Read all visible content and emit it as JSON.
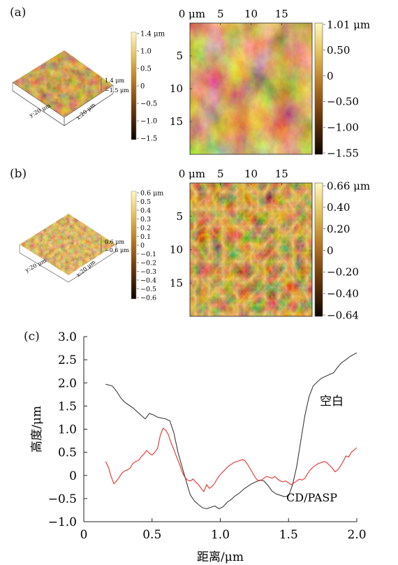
{
  "panels": {
    "a": {
      "label": "(a)",
      "surface3d": {
        "y_axis_label": "y:20 μm",
        "x_axis_label": "x:20 μm",
        "z_top_label": "1.4 μm",
        "z_bottom_label": "−1.5 μm"
      },
      "colorbar_left": {
        "ticks": [
          "1.4 μm",
          "1.0",
          "0.5",
          "0",
          "−0.5",
          "−1.0",
          "−1.5"
        ]
      },
      "map": {
        "x_ticks": [
          "0 μm",
          "5",
          "10",
          "15"
        ],
        "y_ticks": [
          "5",
          "10",
          "15"
        ]
      },
      "colorbar_right": {
        "ticks": [
          "1.01 μm",
          "0.50",
          "0",
          "−0.50",
          "−1.00",
          "−1.55"
        ]
      }
    },
    "b": {
      "label": "(b)",
      "surface3d": {
        "y_axis_label": "y:20 μm",
        "x_axis_label": "x:20 μm",
        "z_top_label": "0.6 μm",
        "z_bottom_label": "−0.6 μm"
      },
      "colorbar_left": {
        "ticks": [
          "0.6 μm",
          "0.5",
          "0.4",
          "0.3",
          "0.2",
          "0.1",
          "0",
          "−0.1",
          "−0.2",
          "−0.3",
          "−0.4",
          "−0.5",
          "−0.6"
        ]
      },
      "map": {
        "x_ticks": [
          "0 μm",
          "5",
          "10",
          "15"
        ],
        "y_ticks": [
          "5",
          "10",
          "15"
        ]
      },
      "colorbar_right": {
        "ticks": [
          "0.66 μm",
          "0.40",
          "0.20",
          "0",
          "−0.20",
          "−0.40",
          "−0.64"
        ]
      }
    },
    "c": {
      "label": "(c)"
    }
  },
  "chart_data": {
    "type": "line",
    "xlabel": "距离/μm",
    "ylabel": "高度/μm",
    "xlim": [
      0,
      2.0
    ],
    "ylim": [
      -1.0,
      3.0
    ],
    "x_ticks": [
      0,
      0.5,
      1.0,
      1.5,
      2.0
    ],
    "x_tick_labels": [
      "0",
      "0.5",
      "1.0",
      "1.5",
      "2.0"
    ],
    "y_ticks": [
      -1.0,
      -0.5,
      0,
      0.5,
      1.0,
      1.5,
      2.0,
      2.5,
      3.0
    ],
    "y_tick_labels": [
      "−1.0",
      "−0.5",
      "0",
      "0.5",
      "1.0",
      "1.5",
      "2.0",
      "2.5",
      "3.0"
    ],
    "grid": false,
    "series": [
      {
        "name": "空白",
        "color": "#3a3a3a",
        "x": [
          0.16,
          0.19,
          0.21,
          0.24,
          0.27,
          0.3,
          0.33,
          0.36,
          0.39,
          0.42,
          0.45,
          0.48,
          0.51,
          0.54,
          0.57,
          0.6,
          0.63,
          0.66,
          0.69,
          0.72,
          0.75,
          0.78,
          0.81,
          0.84,
          0.87,
          0.9,
          0.93,
          0.96,
          0.99,
          1.02,
          1.05,
          1.08,
          1.11,
          1.14,
          1.17,
          1.2,
          1.23,
          1.26,
          1.29,
          1.32,
          1.35,
          1.38,
          1.41,
          1.44,
          1.47,
          1.5,
          1.53,
          1.56,
          1.59,
          1.62,
          1.65,
          1.68,
          1.71,
          1.74,
          1.77,
          1.8,
          1.83,
          1.86,
          1.89,
          1.92,
          1.95,
          1.98,
          2.0
        ],
        "y": [
          1.97,
          1.95,
          1.93,
          1.82,
          1.68,
          1.58,
          1.52,
          1.46,
          1.38,
          1.3,
          1.22,
          1.34,
          1.31,
          1.26,
          1.24,
          1.22,
          1.18,
          0.92,
          0.5,
          0.18,
          -0.12,
          -0.42,
          -0.55,
          -0.63,
          -0.7,
          -0.72,
          -0.69,
          -0.66,
          -0.72,
          -0.68,
          -0.58,
          -0.52,
          -0.44,
          -0.38,
          -0.3,
          -0.24,
          -0.18,
          -0.14,
          -0.1,
          -0.12,
          -0.22,
          -0.34,
          -0.4,
          -0.43,
          -0.46,
          -0.44,
          -0.2,
          0.2,
          0.75,
          1.3,
          1.7,
          1.93,
          2.02,
          2.1,
          2.14,
          2.18,
          2.22,
          2.34,
          2.44,
          2.5,
          2.57,
          2.62,
          2.65
        ]
      },
      {
        "name": "CD/PASP",
        "color": "#e5312b",
        "x": [
          0.16,
          0.18,
          0.2,
          0.22,
          0.24,
          0.26,
          0.28,
          0.3,
          0.32,
          0.34,
          0.36,
          0.38,
          0.4,
          0.42,
          0.44,
          0.46,
          0.48,
          0.5,
          0.52,
          0.54,
          0.56,
          0.58,
          0.6,
          0.62,
          0.64,
          0.66,
          0.68,
          0.7,
          0.72,
          0.74,
          0.76,
          0.78,
          0.8,
          0.82,
          0.84,
          0.86,
          0.88,
          0.9,
          0.92,
          0.94,
          0.96,
          0.98,
          1.0,
          1.02,
          1.04,
          1.06,
          1.08,
          1.1,
          1.12,
          1.14,
          1.16,
          1.18,
          1.2,
          1.22,
          1.24,
          1.26,
          1.28,
          1.3,
          1.32,
          1.34,
          1.36,
          1.38,
          1.4,
          1.42,
          1.44,
          1.46,
          1.48,
          1.5,
          1.52,
          1.54,
          1.56,
          1.58,
          1.6,
          1.62,
          1.64,
          1.66,
          1.68,
          1.7,
          1.72,
          1.74,
          1.76,
          1.78,
          1.8,
          1.82,
          1.84,
          1.86,
          1.88,
          1.9,
          1.92,
          1.94,
          1.96,
          1.98,
          2.0
        ],
        "y": [
          0.3,
          0.18,
          -0.02,
          -0.18,
          -0.12,
          -0.04,
          0.05,
          0.1,
          0.12,
          0.16,
          0.26,
          0.3,
          0.32,
          0.4,
          0.46,
          0.54,
          0.48,
          0.44,
          0.5,
          0.58,
          0.86,
          1.02,
          0.98,
          0.88,
          0.7,
          0.56,
          0.4,
          0.25,
          0.08,
          -0.04,
          -0.1,
          -0.12,
          -0.08,
          -0.14,
          -0.2,
          -0.28,
          -0.35,
          -0.2,
          -0.28,
          -0.24,
          -0.16,
          -0.06,
          0.02,
          0.08,
          0.14,
          0.2,
          0.24,
          0.28,
          0.3,
          0.32,
          0.34,
          0.32,
          0.24,
          0.14,
          0.04,
          -0.06,
          -0.12,
          -0.1,
          -0.06,
          -0.02,
          -0.04,
          -0.06,
          -0.02,
          -0.08,
          -0.12,
          -0.14,
          -0.12,
          -0.16,
          -0.2,
          -0.16,
          -0.12,
          -0.08,
          -0.1,
          -0.06,
          0.04,
          0.12,
          0.18,
          0.22,
          0.26,
          0.28,
          0.3,
          0.28,
          0.22,
          0.16,
          0.08,
          0.12,
          0.2,
          0.3,
          0.42,
          0.4,
          0.5,
          0.55,
          0.6
        ]
      }
    ],
    "annotations": [
      {
        "text": "空白",
        "series": "空白"
      },
      {
        "text": "CD/PASP",
        "series": "CD/PASP"
      }
    ]
  }
}
